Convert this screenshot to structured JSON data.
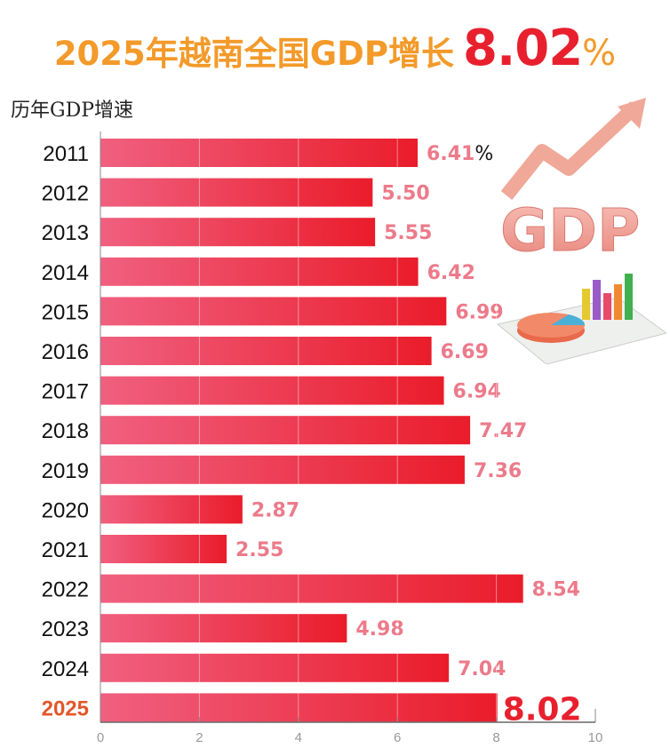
{
  "header": {
    "title_main": "2025年越南全国GDP增长",
    "title_value": "8.02",
    "title_unit": "%"
  },
  "subtitle": "历年GDP增速",
  "illustration": {
    "icon": "gdp-growth-arrow-and-charts-icon",
    "text": "GDP"
  },
  "chart_data": {
    "type": "bar",
    "orientation": "horizontal",
    "title": "历年GDP增速",
    "categories": [
      "2011",
      "2012",
      "2013",
      "2014",
      "2015",
      "2016",
      "2017",
      "2018",
      "2019",
      "2020",
      "2021",
      "2022",
      "2023",
      "2024",
      "2025"
    ],
    "values": [
      6.41,
      5.5,
      5.55,
      6.42,
      6.99,
      6.69,
      6.94,
      7.47,
      7.36,
      2.87,
      2.55,
      8.54,
      4.98,
      7.04,
      8.02
    ],
    "labels": [
      "6.41",
      "5.50",
      "5.55",
      "6.42",
      "6.99",
      "6.69",
      "6.94",
      "7.47",
      "7.36",
      "2.87",
      "2.55",
      "8.54",
      "4.98",
      "7.04",
      "8.02"
    ],
    "first_label_unit": "%",
    "highlight_category": "2025",
    "xlim": [
      0,
      10
    ],
    "xticks": [
      "0",
      "2",
      "4",
      "6",
      "8",
      "10"
    ],
    "grid": true,
    "colors": {
      "bar_start": "#f06080",
      "bar_end": "#ea1c2a",
      "label": "#ec7a8a",
      "highlight_label": "#e8202e",
      "highlight_category": "#e2572a"
    }
  }
}
